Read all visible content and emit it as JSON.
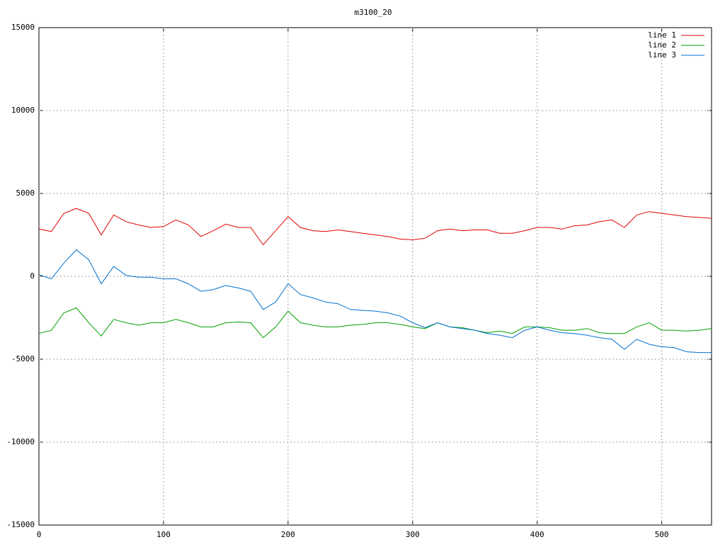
{
  "chart_data": {
    "type": "line",
    "title": "m3100_20",
    "x": [
      0,
      10,
      20,
      30,
      40,
      50,
      60,
      70,
      80,
      90,
      100,
      110,
      120,
      130,
      140,
      150,
      160,
      170,
      180,
      190,
      200,
      210,
      220,
      230,
      240,
      250,
      260,
      270,
      280,
      290,
      300,
      310,
      320,
      330,
      340,
      350,
      360,
      370,
      380,
      390,
      400,
      410,
      420,
      430,
      440,
      450,
      460,
      470,
      480,
      490,
      500,
      510,
      520,
      530,
      540
    ],
    "series": [
      {
        "name": "line 1",
        "color": "#e00000",
        "values": [
          2860,
          2700,
          3800,
          4100,
          3800,
          2500,
          3700,
          3300,
          3100,
          2950,
          3000,
          3400,
          3100,
          2400,
          2750,
          3150,
          2950,
          2950,
          1900,
          2750,
          3600,
          2950,
          2750,
          2700,
          2800,
          2700,
          2600,
          2500,
          2400,
          2250,
          2200,
          2300,
          2750,
          2850,
          2750,
          2800,
          2800,
          2600,
          2600,
          2750,
          2950,
          2950,
          2850,
          3050,
          3100,
          3300,
          3400,
          2950,
          3700,
          3900,
          3800,
          3700,
          3600,
          3550,
          3500
        ]
      },
      {
        "name": "line 2",
        "color": "#00a000",
        "values": [
          -3450,
          -3250,
          -2200,
          -1900,
          -2800,
          -3600,
          -2600,
          -2800,
          -2950,
          -2800,
          -2800,
          -2600,
          -2800,
          -3050,
          -3050,
          -2800,
          -2750,
          -2800,
          -3700,
          -3050,
          -2100,
          -2800,
          -2950,
          -3050,
          -3050,
          -2950,
          -2900,
          -2800,
          -2800,
          -2900,
          -3050,
          -3150,
          -2800,
          -3050,
          -3100,
          -3250,
          -3400,
          -3300,
          -3450,
          -3050,
          -3050,
          -3100,
          -3250,
          -3250,
          -3150,
          -3400,
          -3450,
          -3450,
          -3050,
          -2800,
          -3250,
          -3250,
          -3300,
          -3250,
          -3150
        ]
      },
      {
        "name": "line 3",
        "color": "#0070d0",
        "values": [
          100,
          -150,
          800,
          1600,
          1000,
          -450,
          600,
          50,
          -50,
          -50,
          -150,
          -150,
          -450,
          -900,
          -800,
          -550,
          -700,
          -900,
          -2000,
          -1550,
          -450,
          -1100,
          -1300,
          -1550,
          -1650,
          -2000,
          -2050,
          -2100,
          -2200,
          -2400,
          -2800,
          -3100,
          -2800,
          -3050,
          -3150,
          -3250,
          -3450,
          -3550,
          -3700,
          -3250,
          -3050,
          -3250,
          -3400,
          -3450,
          -3550,
          -3700,
          -3800,
          -4400,
          -3800,
          -4100,
          -4250,
          -4300,
          -4550,
          -4600,
          -4600
        ]
      }
    ],
    "xlim": [
      0,
      540
    ],
    "xticks": [
      0,
      100,
      200,
      300,
      400,
      500
    ],
    "ylim": [
      -15000,
      15000
    ],
    "yticks": [
      -15000,
      -10000,
      -5000,
      0,
      5000,
      10000,
      15000
    ],
    "grid": true
  }
}
